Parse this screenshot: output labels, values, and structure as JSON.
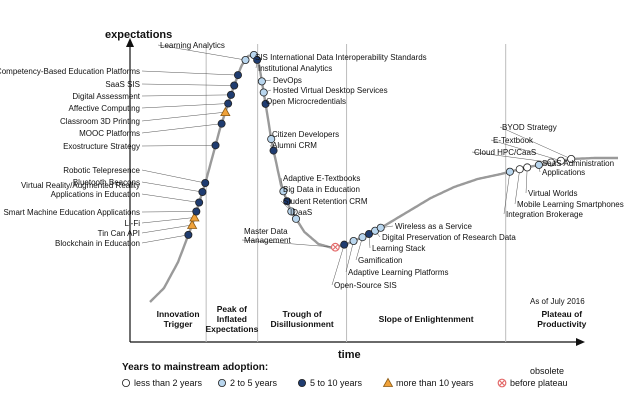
{
  "chart_data": {
    "type": "hype-cycle",
    "ylabel": "expectations",
    "xlabel": "time",
    "as_of": "As of July 2016",
    "phases": [
      {
        "label": "Innovation\nTrigger",
        "range": [
          0,
          0.12
        ]
      },
      {
        "label": "Peak of\nInflated\nExpectations",
        "range": [
          0.12,
          0.23
        ]
      },
      {
        "label": "Trough of\nDisillusionment",
        "range": [
          0.23,
          0.42
        ]
      },
      {
        "label": "Slope of Enlightenment",
        "range": [
          0.42,
          0.76
        ]
      },
      {
        "label": "Plateau of\nProductivity",
        "range": [
          0.76,
          1.0
        ]
      }
    ],
    "legend": {
      "title": "Years to mainstream adoption:",
      "items": [
        {
          "key": "lt2",
          "label": "less than 2 years"
        },
        {
          "key": "2to5",
          "label": "2 to 5 years"
        },
        {
          "key": "5to10",
          "label": "5 to 10 years"
        },
        {
          "key": "gt10",
          "label": "more than 10 years"
        },
        {
          "key": "obsolete",
          "label": "before plateau",
          "note": "obsolete"
        }
      ]
    },
    "technologies": [
      {
        "name": "Blockchain in Education",
        "t": 0.082,
        "cat": "5to10"
      },
      {
        "name": "Tin Can API",
        "t": 0.09,
        "cat": "gt10"
      },
      {
        "name": "Li-Fi",
        "t": 0.095,
        "cat": "gt10"
      },
      {
        "name": "Smart Machine Education Applications",
        "t": 0.099,
        "cat": "5to10"
      },
      {
        "name": "Virtual Reality/Augmented Reality\nApplications in Education",
        "t": 0.105,
        "cat": "5to10"
      },
      {
        "name": "Bluetooth Beacons",
        "t": 0.112,
        "cat": "5to10"
      },
      {
        "name": "Robotic Telepresence",
        "t": 0.118,
        "cat": "5to10"
      },
      {
        "name": "Exostructure Strategy",
        "t": 0.14,
        "cat": "5to10"
      },
      {
        "name": "MOOC Platforms",
        "t": 0.153,
        "cat": "5to10"
      },
      {
        "name": "Classroom 3D Printing",
        "t": 0.161,
        "cat": "gt10"
      },
      {
        "name": "Affective Computing",
        "t": 0.167,
        "cat": "5to10"
      },
      {
        "name": "Digital Assessment",
        "t": 0.173,
        "cat": "5to10"
      },
      {
        "name": "SaaS SIS",
        "t": 0.18,
        "cat": "5to10"
      },
      {
        "name": "Competency-Based Education Platforms",
        "t": 0.188,
        "cat": "5to10"
      },
      {
        "name": "Learning Analytics",
        "t": 0.204,
        "cat": "2to5"
      },
      {
        "name": "SIS International Data Interoperability Standards",
        "t": 0.222,
        "cat": "2to5"
      },
      {
        "name": "Institutional Analytics",
        "t": 0.229,
        "cat": "5to10"
      },
      {
        "name": "DevOps",
        "t": 0.239,
        "cat": "2to5"
      },
      {
        "name": "Hosted Virtual Desktop Services",
        "t": 0.243,
        "cat": "2to5"
      },
      {
        "name": "Open Microcredentials",
        "t": 0.247,
        "cat": "5to10"
      },
      {
        "name": "Citizen Developers",
        "t": 0.259,
        "cat": "2to5"
      },
      {
        "name": "Alumni CRM",
        "t": 0.264,
        "cat": "5to10"
      },
      {
        "name": "Adaptive E-Textbooks",
        "t": 0.285,
        "cat": "2to5"
      },
      {
        "name": "Big Data in Education",
        "t": 0.293,
        "cat": "5to10"
      },
      {
        "name": "Student Retention CRM",
        "t": 0.302,
        "cat": "2to5"
      },
      {
        "name": "IDaaS",
        "t": 0.312,
        "cat": "2to5"
      },
      {
        "name": "Master Data\nManagement",
        "t": 0.396,
        "cat": "obsolete"
      },
      {
        "name": "Open-Source SIS",
        "t": 0.415,
        "cat": "5to10"
      },
      {
        "name": "Adaptive Learning Platforms",
        "t": 0.435,
        "cat": "2to5"
      },
      {
        "name": "Gamification",
        "t": 0.454,
        "cat": "2to5"
      },
      {
        "name": "Learning Stack",
        "t": 0.468,
        "cat": "5to10"
      },
      {
        "name": "Digital Preservation of Research Data",
        "t": 0.481,
        "cat": "2to5"
      },
      {
        "name": "Wireless as a Service",
        "t": 0.493,
        "cat": "2to5"
      },
      {
        "name": "Integration Brokerage",
        "t": 0.769,
        "cat": "2to5"
      },
      {
        "name": "Mobile Learning Smartphones",
        "t": 0.79,
        "cat": "lt2"
      },
      {
        "name": "Virtual Worlds",
        "t": 0.806,
        "cat": "lt2"
      },
      {
        "name": "SaaS Administration\nApplications",
        "t": 0.831,
        "cat": "2to5"
      },
      {
        "name": "Cloud HPC/CaaS",
        "t": 0.857,
        "cat": "lt2"
      },
      {
        "name": "E-Textbook",
        "t": 0.878,
        "cat": "lt2"
      },
      {
        "name": "BYOD Strategy",
        "t": 0.9,
        "cat": "lt2"
      }
    ]
  },
  "colors": {
    "curve": "#9a9a9a",
    "axis": "#111111",
    "divider": "#bdbdbd",
    "dot_lt2": "#ffffff",
    "dot_2to5": "#b9d6ee",
    "dot_5to10": "#1f3c70",
    "dot_gt10": "#f0a23a",
    "dot_obsolete": "#e36a6a"
  }
}
